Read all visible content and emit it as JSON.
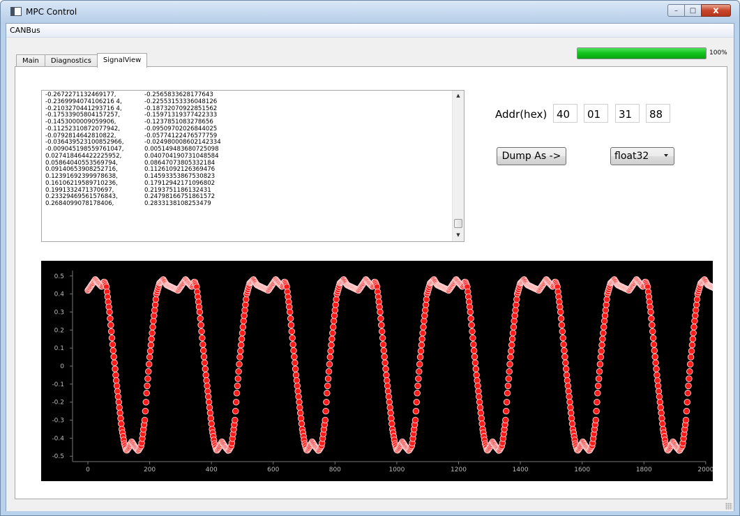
{
  "window": {
    "title": "MPC Control",
    "controls": {
      "minimize": "–",
      "maximize": "□",
      "close": "x"
    }
  },
  "menu": {
    "items": [
      "CANBus"
    ]
  },
  "tabs": [
    {
      "label": "Main",
      "active": false
    },
    {
      "label": "Diagnostics",
      "active": false
    },
    {
      "label": "SignalView",
      "active": true
    }
  ],
  "progress": {
    "value": 100,
    "text": "100%",
    "color": "#12c21c"
  },
  "dump": {
    "rows": [
      [
        "-0.2672271132469177,",
        "-0.2565833628177643"
      ],
      [
        "-0.2369994074106216 4,",
        "-0.22553153336048126"
      ],
      [
        "-0.2103270441293716 4,",
        "-0.18732070922851562"
      ],
      [
        "-0.17533905804157257,",
        "-0.15971319377422333"
      ],
      [
        "-0.1453000009059906,",
        "-0.1237851083278656"
      ],
      [
        "-0.11252310872077942,",
        "-0.09509702026844025"
      ],
      [
        "-0.0792814642810822,",
        "-0.05774122476577759"
      ],
      [
        "-0.036439523100852966,",
        "-0.024980008602142334"
      ],
      [
        "-0.009045198559761047,",
        "0.005149483680725098"
      ],
      [
        "0.027418464422225952,",
        "0.040704190731048584"
      ],
      [
        "0.05864040553569794,",
        "0.08647073805332184"
      ],
      [
        "0.09140653908252716,",
        "0.11261092126369476"
      ],
      [
        "0.12391692399978638,",
        "0.14593353867530823"
      ],
      [
        "0.16106219589710236,",
        "0.17912942171096802"
      ],
      [
        "0.1991332471370697,",
        "0.2193751186132431"
      ],
      [
        "0.23329469561576843,",
        "0.24798166751861572"
      ],
      [
        "0.2684099078178406,",
        "0.2833138108253479"
      ]
    ]
  },
  "addr": {
    "label": "Addr(hex)",
    "bytes": [
      "40",
      "01",
      "31",
      "88"
    ]
  },
  "dump_button": {
    "label": "Dump As ->"
  },
  "format_select": {
    "value": "float32"
  },
  "chart_data": {
    "type": "scatter",
    "title": "",
    "xlabel": "",
    "ylabel": "",
    "xlim": [
      0,
      2050
    ],
    "ylim": [
      -0.53,
      0.53
    ],
    "xticks": [
      0,
      200,
      400,
      600,
      800,
      1000,
      1200,
      1400,
      1600,
      1800,
      2000
    ],
    "yticks": [
      0.5,
      0.4,
      0.3,
      0.2,
      0.1,
      0,
      -0.1,
      -0.2,
      -0.3,
      -0.4,
      -0.5
    ],
    "background": "#000000",
    "marker_fill": "#ff1a1a",
    "marker_edge": "#ffd0d0",
    "grid": false,
    "n_points": 2048,
    "period": 292,
    "series": [
      {
        "x": [
          0,
          12,
          24,
          34,
          45,
          53,
          60,
          70,
          80,
          90,
          100,
          110,
          118,
          125,
          133,
          142,
          153,
          163,
          173,
          184,
          190,
          200,
          212,
          222,
          232,
          244,
          255
        ],
        "y": [
          0.42,
          0.45,
          0.48,
          0.46,
          0.44,
          0.47,
          0.44,
          0.3,
          0.12,
          -0.05,
          -0.2,
          -0.35,
          -0.43,
          -0.47,
          -0.45,
          -0.42,
          -0.45,
          -0.47,
          -0.44,
          -0.3,
          -0.15,
          0.05,
          0.25,
          0.4,
          0.46,
          0.48,
          0.45
        ]
      }
    ]
  }
}
